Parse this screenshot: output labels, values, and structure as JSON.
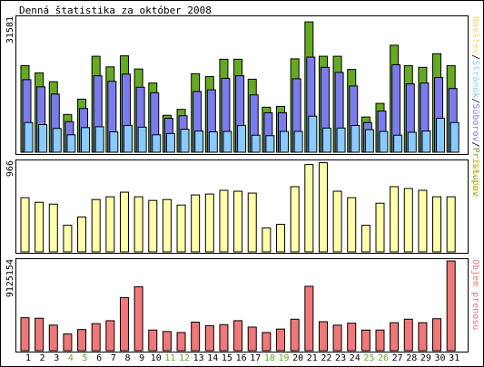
{
  "title": "Denná štatistika za október 2008",
  "colors": {
    "hits": "#66aa22",
    "files": "#7b7bee",
    "pages": "#88ccff",
    "visits": "#ffffaa",
    "kbytes": "#f07878",
    "day_normal": "#000000",
    "day_weekend": "#66aa22",
    "frame_bg": "#ffffff",
    "plot_bg": "#ffffff"
  },
  "legends": {
    "top": [
      {
        "text": "Návštev",
        "color": "#ffd466"
      },
      {
        "text": "/",
        "color": "#000000"
      },
      {
        "text": "Stránok",
        "color": "#88ccff"
      },
      {
        "text": "/",
        "color": "#000000"
      },
      {
        "text": "Súborov",
        "color": "#7b7bee"
      },
      {
        "text": "/",
        "color": "#000000"
      },
      {
        "text": "Prístupov",
        "color": "#66aa22"
      }
    ],
    "middle": "Návštev",
    "bottom": "Objem prenosu"
  },
  "chart_data": [
    {
      "type": "bar",
      "title": "Denná štatistika za október 2008",
      "categories": [
        "1",
        "2",
        "3",
        "4",
        "5",
        "6",
        "7",
        "8",
        "9",
        "10",
        "11",
        "12",
        "13",
        "14",
        "15",
        "16",
        "17",
        "18",
        "19",
        "20",
        "21",
        "22",
        "23",
        "24",
        "25",
        "26",
        "27",
        "28",
        "29",
        "30",
        "31"
      ],
      "weekend_days": [
        "4",
        "5",
        "11",
        "12",
        "18",
        "19",
        "25",
        "26"
      ],
      "ymax_label": "31581",
      "ylim": [
        0,
        31581
      ],
      "series": [
        {
          "name": "Prístupov",
          "values": [
            20400,
            18700,
            16600,
            8900,
            12500,
            22600,
            20100,
            22700,
            19600,
            16300,
            8700,
            10100,
            18500,
            17800,
            21900,
            21900,
            17200,
            10600,
            10800,
            22000,
            30700,
            22600,
            22600,
            19500,
            8300,
            11500,
            25200,
            20400,
            20000,
            23200,
            20400
          ]
        },
        {
          "name": "Súborov",
          "values": [
            17100,
            15400,
            13700,
            7200,
            10300,
            18000,
            16700,
            18400,
            15300,
            14000,
            8000,
            8600,
            14300,
            14700,
            17400,
            18000,
            13500,
            9300,
            9300,
            17300,
            22400,
            20000,
            18800,
            15600,
            7000,
            9700,
            20600,
            16100,
            16300,
            17600,
            15000
          ]
        },
        {
          "name": "Stránok",
          "values": [
            7000,
            6500,
            5600,
            4100,
            5800,
            6000,
            4800,
            6300,
            5900,
            4100,
            4400,
            5400,
            5000,
            4800,
            4900,
            6300,
            4000,
            3900,
            4900,
            4900,
            8500,
            5700,
            5700,
            6300,
            5300,
            4900,
            4000,
            4700,
            5000,
            8000,
            7000
          ]
        }
      ]
    },
    {
      "type": "bar",
      "categories": [
        "1",
        "2",
        "3",
        "4",
        "5",
        "6",
        "7",
        "8",
        "9",
        "10",
        "11",
        "12",
        "13",
        "14",
        "15",
        "16",
        "17",
        "18",
        "19",
        "20",
        "21",
        "22",
        "23",
        "24",
        "25",
        "26",
        "27",
        "28",
        "29",
        "30",
        "31"
      ],
      "ymax_label": "966",
      "ylim": [
        0,
        966
      ],
      "series": [
        {
          "name": "Návštev",
          "values": [
            590,
            540,
            520,
            290,
            380,
            570,
            600,
            650,
            600,
            560,
            570,
            510,
            620,
            630,
            670,
            660,
            640,
            260,
            300,
            710,
            950,
            970,
            660,
            590,
            290,
            530,
            710,
            690,
            670,
            600,
            600
          ]
        }
      ]
    },
    {
      "type": "bar",
      "categories": [
        "1",
        "2",
        "3",
        "4",
        "5",
        "6",
        "7",
        "8",
        "9",
        "10",
        "11",
        "12",
        "13",
        "14",
        "15",
        "16",
        "17",
        "18",
        "19",
        "20",
        "21",
        "22",
        "23",
        "24",
        "25",
        "26",
        "27",
        "28",
        "29",
        "30",
        "31"
      ],
      "ymax_label": "9125154",
      "ylim": [
        0,
        9125154
      ],
      "series": [
        {
          "name": "Objem prenosu",
          "values": [
            3350000,
            3300000,
            2600000,
            1700000,
            2150000,
            2750000,
            3050000,
            5400000,
            6500000,
            2100000,
            1950000,
            1850000,
            2900000,
            2550000,
            2650000,
            3050000,
            2400000,
            1850000,
            2200000,
            3200000,
            6550000,
            2950000,
            2600000,
            2800000,
            2100000,
            2100000,
            2850000,
            3200000,
            2850000,
            3250000,
            9125154
          ]
        }
      ]
    }
  ]
}
